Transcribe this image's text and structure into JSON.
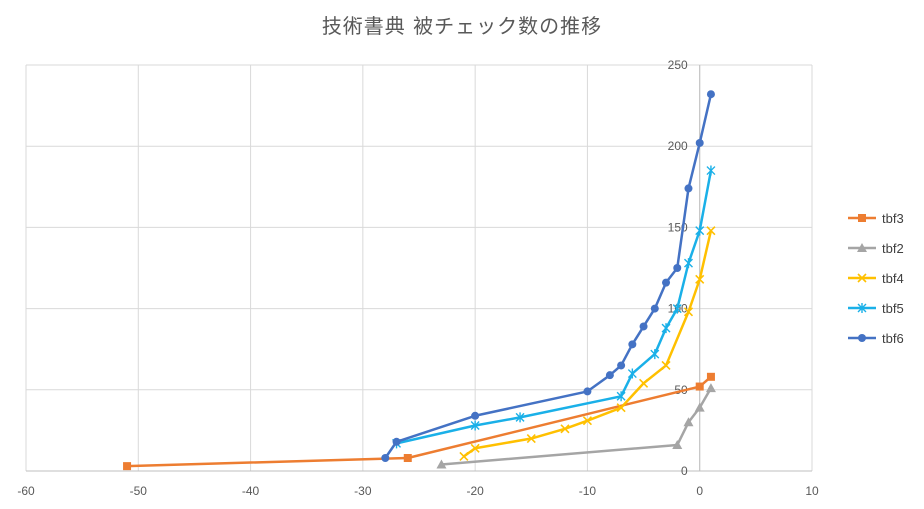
{
  "chart_data": {
    "type": "scatter",
    "title": "技術書典 被チェック数の推移",
    "xlabel": "",
    "ylabel": "",
    "xlim": [
      -60,
      10
    ],
    "ylim": [
      0,
      250
    ],
    "x_ticks": [
      -60,
      -50,
      -40,
      -30,
      -20,
      -10,
      0,
      10
    ],
    "y_ticks": [
      0,
      50,
      100,
      150,
      200,
      250
    ],
    "grid": true,
    "legend_position": "right",
    "series": [
      {
        "name": "tbf3",
        "color": "#ED7D31",
        "marker": "square",
        "points": [
          [
            -51,
            3
          ],
          [
            -26,
            8
          ],
          [
            0,
            52
          ],
          [
            1,
            58
          ]
        ]
      },
      {
        "name": "tbf2",
        "color": "#A5A5A5",
        "marker": "triangle",
        "points": [
          [
            -23,
            4
          ],
          [
            -2,
            16
          ],
          [
            -1,
            30
          ],
          [
            0,
            39
          ],
          [
            1,
            51
          ]
        ]
      },
      {
        "name": "tbf4",
        "color": "#FFC000",
        "marker": "x",
        "points": [
          [
            -21,
            9
          ],
          [
            -20,
            14
          ],
          [
            -15,
            20
          ],
          [
            -12,
            26
          ],
          [
            -10,
            31
          ],
          [
            -7,
            39
          ],
          [
            -5,
            54
          ],
          [
            -3,
            65
          ],
          [
            -1,
            98
          ],
          [
            0,
            118
          ],
          [
            1,
            148
          ]
        ]
      },
      {
        "name": "tbf5",
        "color": "#1AB0E8",
        "marker": "asterisk",
        "points": [
          [
            -27,
            17
          ],
          [
            -20,
            28
          ],
          [
            -16,
            33
          ],
          [
            -7,
            46
          ],
          [
            -6,
            60
          ],
          [
            -4,
            72
          ],
          [
            -3,
            88
          ],
          [
            -2,
            100
          ],
          [
            -1,
            128
          ],
          [
            0,
            148
          ],
          [
            1,
            185
          ]
        ]
      },
      {
        "name": "tbf6",
        "color": "#4472C4",
        "marker": "circle",
        "points": [
          [
            -28,
            8
          ],
          [
            -27,
            18
          ],
          [
            -20,
            34
          ],
          [
            -10,
            49
          ],
          [
            -8,
            59
          ],
          [
            -7,
            65
          ],
          [
            -6,
            78
          ],
          [
            -5,
            89
          ],
          [
            -4,
            100
          ],
          [
            -3,
            116
          ],
          [
            -2,
            125
          ],
          [
            -1,
            174
          ],
          [
            0,
            202
          ],
          [
            1,
            232
          ]
        ]
      }
    ]
  }
}
